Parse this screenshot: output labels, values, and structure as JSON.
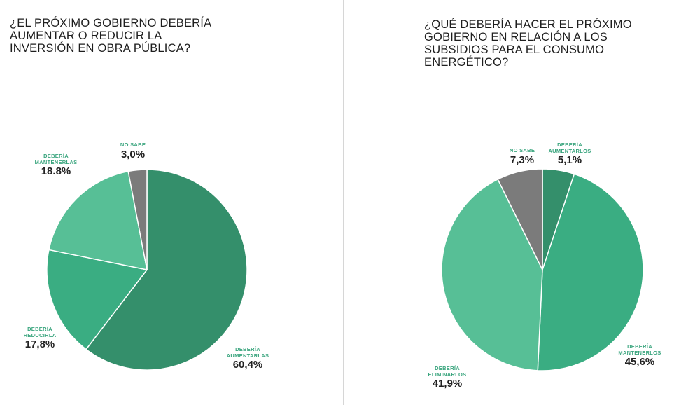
{
  "chart_data": [
    {
      "type": "pie",
      "title_lines": [
        "¿EL PRÓXIMO GOBIERNO DEBERÍA",
        "AUMENTAR O REDUCIR LA",
        "INVERSIÓN EN OBRA PÚBLICA?"
      ],
      "slices": [
        {
          "label_lines": [
            "DEBERÍA",
            "AUMENTARLAS"
          ],
          "value": 60.4,
          "value_label": "60,4%",
          "color": "#348f6b"
        },
        {
          "label_lines": [
            "DEBERÍA",
            "REDUCIRLA"
          ],
          "value": 17.8,
          "value_label": "17,8%",
          "color": "#3aad82"
        },
        {
          "label_lines": [
            "DEBERÍA",
            "MANTENERLAS"
          ],
          "value": 18.8,
          "value_label": "18.8%",
          "color": "#57bf96"
        },
        {
          "label_lines": [
            "NO SABE"
          ],
          "value": 3.0,
          "value_label": "3,0%",
          "color": "#7b7b7b"
        }
      ]
    },
    {
      "type": "pie",
      "title_lines": [
        "¿QUÉ DEBERÍA HACER EL PRÓXIMO",
        "GOBIERNO EN RELACIÓN A LOS",
        "SUBSIDIOS PARA EL CONSUMO",
        "ENERGÉTICO?"
      ],
      "slices": [
        {
          "label_lines": [
            "DEBERÍA",
            "AUMENTARLOS"
          ],
          "value": 5.1,
          "value_label": "5,1%",
          "color": "#348f6b"
        },
        {
          "label_lines": [
            "DEBERÍA",
            "MANTENERLOS"
          ],
          "value": 45.6,
          "value_label": "45,6%",
          "color": "#3aad82"
        },
        {
          "label_lines": [
            "DEBERÍA",
            "ELIMINARLOS"
          ],
          "value": 41.9,
          "value_label": "41,9%",
          "color": "#57bf96"
        },
        {
          "label_lines": [
            "NO SABE"
          ],
          "value": 7.3,
          "value_label": "7,3%",
          "color": "#7b7b7b"
        }
      ]
    }
  ]
}
